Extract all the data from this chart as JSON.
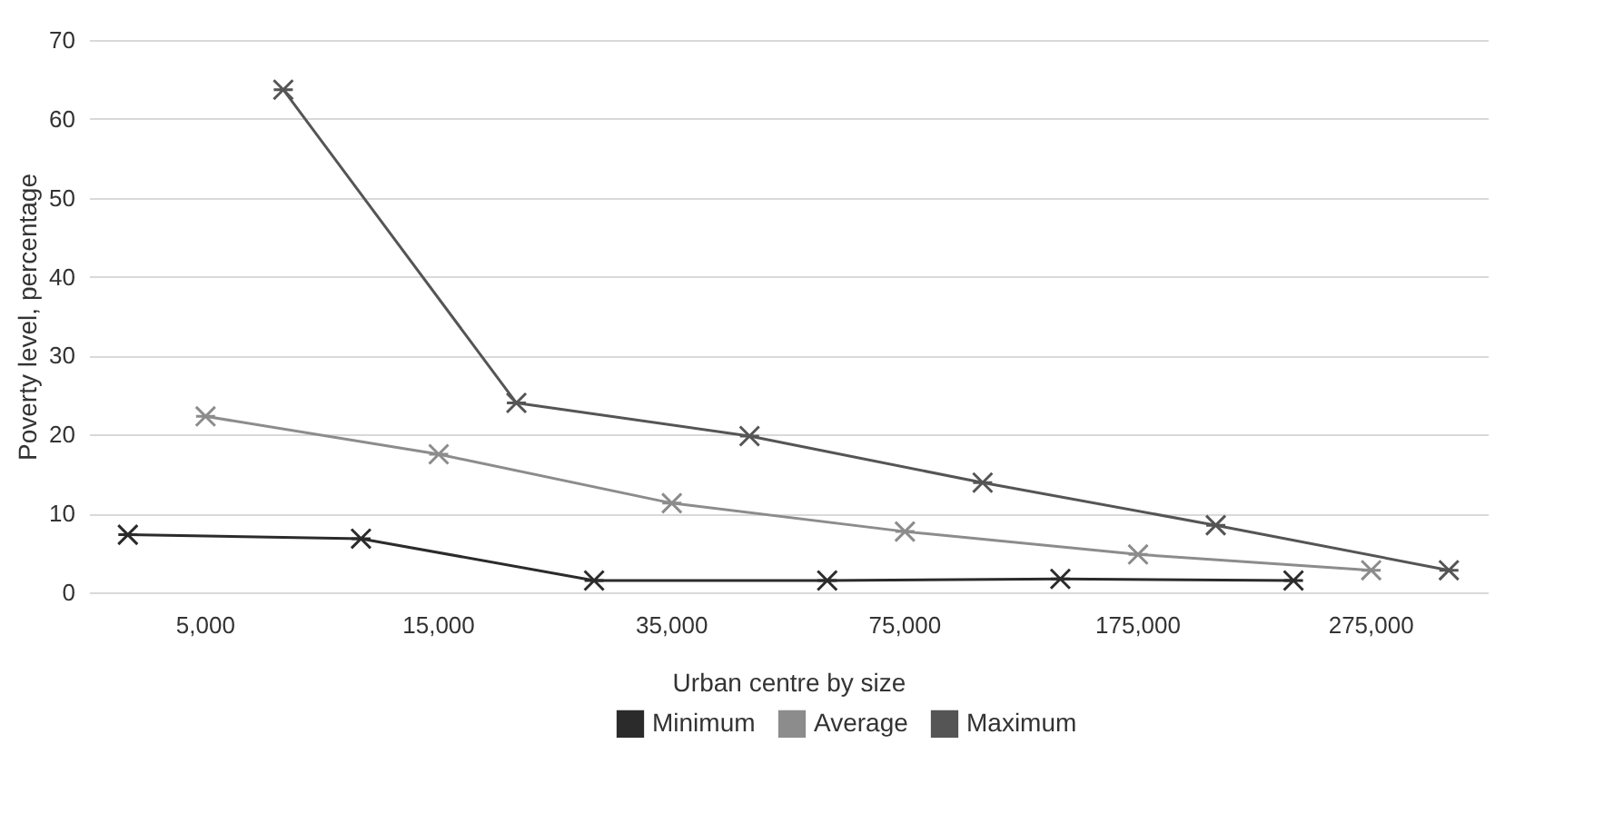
{
  "chart_data": {
    "type": "line",
    "xlabel": "Urban centre by size",
    "ylabel": "Poverty level, percentage",
    "categories": [
      "5,000",
      "15,000",
      "35,000",
      "75,000",
      "175,000",
      "275,000"
    ],
    "series": [
      {
        "name": "Minimum",
        "color": "#2b2b2b",
        "values": [
          7.3,
          6.8,
          1.5,
          1.5,
          1.7,
          1.5
        ]
      },
      {
        "name": "Average",
        "color": "#8c8c8c",
        "values": [
          22.3,
          17.5,
          11.3,
          7.7,
          4.8,
          2.8
        ]
      },
      {
        "name": "Maximum",
        "color": "#555555",
        "values": [
          63.7,
          24,
          19.8,
          13.9,
          8.5,
          2.8
        ]
      }
    ],
    "ylim": [
      0,
      70
    ],
    "yticks": [
      0,
      10,
      20,
      30,
      40,
      50,
      60,
      70
    ],
    "grid": "y",
    "legend": "bottom",
    "marker": "cross",
    "line_style": "solid"
  }
}
